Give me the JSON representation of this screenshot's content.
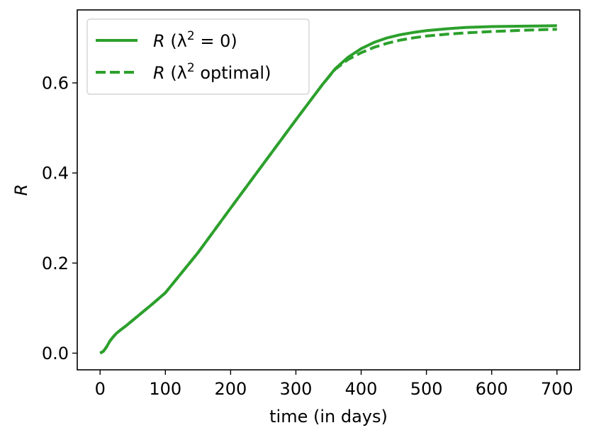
{
  "chart_data": {
    "type": "line",
    "xlabel": "time (in days)",
    "ylabel": "R",
    "xlim": [
      -35,
      735
    ],
    "ylim": [
      -0.037,
      0.762
    ],
    "xticks": [
      0,
      100,
      200,
      300,
      400,
      500,
      600,
      700
    ],
    "yticks": [
      0.0,
      0.2,
      0.4,
      0.6
    ],
    "xtick_labels": [
      "0",
      "100",
      "200",
      "300",
      "400",
      "500",
      "600",
      "700"
    ],
    "ytick_labels": [
      "0.0",
      "0.2",
      "0.4",
      "0.6"
    ],
    "grid": false,
    "legend_position": "top-left",
    "series": [
      {
        "name": "R (λ² = 0)",
        "legend_main": "R",
        "legend_open": " (λ",
        "legend_sup": "2",
        "legend_rest": " = 0)",
        "color": "#2ca02c",
        "style": "solid",
        "x": [
          0,
          5,
          10,
          15,
          20,
          25,
          30,
          40,
          50,
          60,
          80,
          100,
          150,
          200,
          250,
          300,
          340,
          360,
          380,
          400,
          420,
          440,
          460,
          480,
          500,
          530,
          560,
          600,
          650,
          700
        ],
        "y": [
          0.0,
          0.004,
          0.014,
          0.027,
          0.036,
          0.044,
          0.05,
          0.061,
          0.073,
          0.085,
          0.109,
          0.134,
          0.223,
          0.322,
          0.42,
          0.518,
          0.595,
          0.631,
          0.657,
          0.676,
          0.69,
          0.7,
          0.707,
          0.712,
          0.716,
          0.72,
          0.723,
          0.725,
          0.726,
          0.727
        ]
      },
      {
        "name": "R (λ² optimal)",
        "legend_main": "R",
        "legend_open": " (λ",
        "legend_sup": "2",
        "legend_rest": " optimal)",
        "color": "#2ca02c",
        "style": "dashed",
        "x": [
          0,
          5,
          10,
          15,
          20,
          25,
          30,
          40,
          50,
          60,
          80,
          100,
          150,
          200,
          250,
          300,
          340,
          360,
          380,
          400,
          420,
          440,
          460,
          480,
          500,
          530,
          560,
          600,
          650,
          700
        ],
        "y": [
          0.0,
          0.004,
          0.014,
          0.027,
          0.036,
          0.044,
          0.05,
          0.061,
          0.073,
          0.085,
          0.109,
          0.134,
          0.223,
          0.322,
          0.42,
          0.518,
          0.595,
          0.63,
          0.652,
          0.667,
          0.679,
          0.688,
          0.695,
          0.7,
          0.704,
          0.708,
          0.711,
          0.714,
          0.717,
          0.719
        ]
      }
    ]
  }
}
